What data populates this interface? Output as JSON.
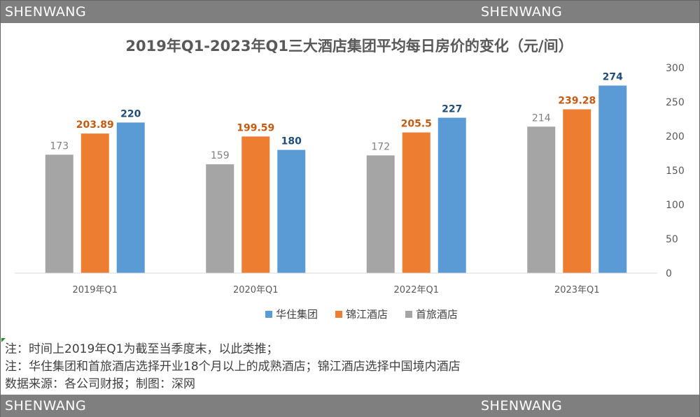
{
  "brand": {
    "watermark": "SHENWANG"
  },
  "chart_data": {
    "type": "bar",
    "title": "2019年Q1-2023年Q1三大酒店集团平均每日房价的变化（元/间）",
    "categories": [
      "2019年Q1",
      "2020年Q1",
      "2022年Q1",
      "2023年Q1"
    ],
    "series": [
      {
        "name": "首旅酒店",
        "color": "#a5a5a5",
        "label_color": "#7f7f7f",
        "values": [
          173,
          159,
          172,
          214
        ]
      },
      {
        "name": "锦江酒店",
        "color": "#ed7d31",
        "label_color": "#c55a11",
        "values": [
          203.89,
          199.59,
          205.5,
          239.28
        ]
      },
      {
        "name": "华住集团",
        "color": "#5b9bd5",
        "label_color": "#1f4e79",
        "values": [
          220,
          180,
          227,
          274
        ]
      }
    ],
    "legend_order": [
      "华住集团",
      "锦江酒店",
      "首旅酒店"
    ],
    "legend_position": "bottom",
    "y_axis_side": "right",
    "ylim": [
      0,
      300
    ],
    "yticks": [
      0,
      50,
      100,
      150,
      200,
      250,
      300
    ],
    "grid": false
  },
  "notes": [
    "注：时间上2019年Q1为截至当季度末，以此类推；",
    "注：华住集团和首旅酒店选择开业18个月以上的成熟酒店；锦江酒店选择中国境内酒店",
    "数据来源：各公司财报；制图：深网"
  ]
}
